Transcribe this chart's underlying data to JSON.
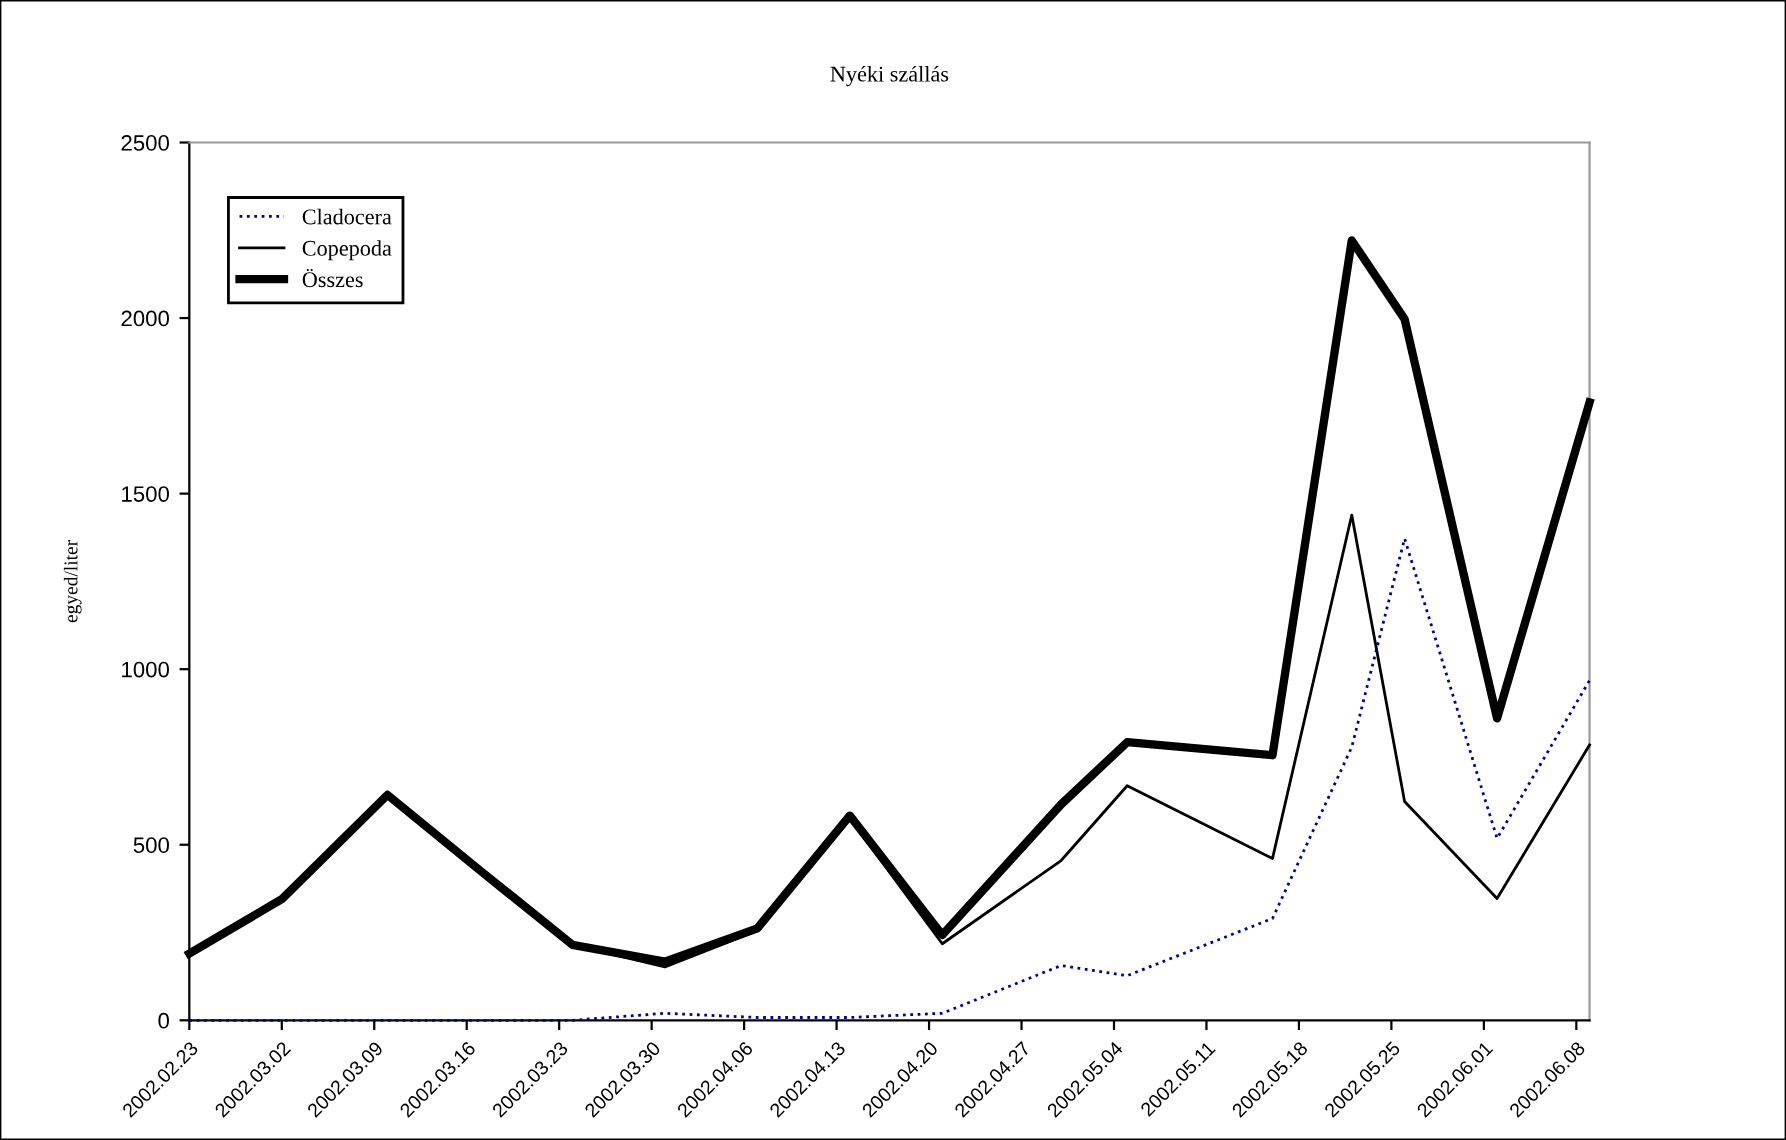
{
  "chart_data": {
    "type": "line",
    "title": "Nyéki szállás",
    "ylabel": "egyed/liter",
    "x": [
      "2002-02-23",
      "2002-03-02",
      "2002-03-10",
      "2002-03-17",
      "2002-03-24",
      "2002-03-31",
      "2002-04-07",
      "2002-04-14",
      "2002-04-21",
      "2002-04-30",
      "2002-05-05",
      "2002-05-16",
      "2002-05-22",
      "2002-05-26",
      "2002-06-02",
      "2002-06-09"
    ],
    "series": [
      {
        "name": "Cladocera",
        "color": "#00009c",
        "line_style": "dotted",
        "values": [
          0,
          0,
          0,
          0,
          0,
          20,
          8,
          8,
          20,
          156,
          127,
          290,
          778,
          1372,
          518,
          968
        ]
      },
      {
        "name": "Copepoda",
        "color": "#000000",
        "line_style": "solid",
        "values": [
          190,
          345,
          642,
          427,
          215,
          152,
          255,
          575,
          218,
          455,
          668,
          461,
          1439,
          623,
          347,
          784
        ]
      },
      {
        "name": "Összes",
        "color": "#000000",
        "line_style": "solid",
        "values": [
          190,
          345,
          642,
          427,
          215,
          167,
          262,
          583,
          243,
          615,
          792,
          755,
          2221,
          1997,
          860,
          1760
        ]
      }
    ],
    "xlim": [
      "2002-02-23",
      "2002-06-09"
    ],
    "xticks": [
      {
        "value": "2002-02-23",
        "label": "2002.02.23"
      },
      {
        "value": "2002-03-02",
        "label": "2002.03.02"
      },
      {
        "value": "2002-03-09",
        "label": "2002.03.09"
      },
      {
        "value": "2002-03-16",
        "label": "2002.03.16"
      },
      {
        "value": "2002-03-23",
        "label": "2002.03.23"
      },
      {
        "value": "2002-03-30",
        "label": "2002.03.30"
      },
      {
        "value": "2002-04-06",
        "label": "2002.04.06"
      },
      {
        "value": "2002-04-13",
        "label": "2002.04.13"
      },
      {
        "value": "2002-04-20",
        "label": "2002.04.20"
      },
      {
        "value": "2002-04-27",
        "label": "2002.04.27"
      },
      {
        "value": "2002-05-04",
        "label": "2002.05.04"
      },
      {
        "value": "2002-05-11",
        "label": "2002.05.11"
      },
      {
        "value": "2002-05-18",
        "label": "2002.05.18"
      },
      {
        "value": "2002-05-25",
        "label": "2002.05.25"
      },
      {
        "value": "2002-06-01",
        "label": "2002.06.01"
      },
      {
        "value": "2002-06-08",
        "label": "2002.06.08"
      }
    ],
    "ylim": [
      0,
      2500
    ],
    "yticks": [
      0,
      500,
      1000,
      1500,
      2000,
      2500
    ],
    "grid": false,
    "legend": "top left",
    "marker": "none"
  }
}
